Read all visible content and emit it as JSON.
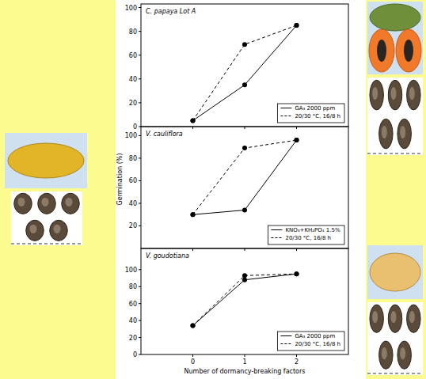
{
  "chart_data": [
    {
      "type": "line",
      "title": "C. papaya Lot A",
      "x": [
        0,
        1,
        2
      ],
      "xlim": [
        -1,
        3
      ],
      "xticks": [
        0,
        1,
        2
      ],
      "ylim": [
        0,
        103
      ],
      "yticks": [
        0,
        20,
        40,
        60,
        80,
        100
      ],
      "tick_labels": "y",
      "legend": "lower right",
      "series": [
        {
          "name": "GA₃ 2000 ppm",
          "color": "#000000",
          "line_style": "solid",
          "marker": "circle",
          "values": [
            5,
            35,
            85
          ]
        },
        {
          "name": "20/30 °C, 16/8 h",
          "color": "#000000",
          "line_style": "dashed",
          "marker": "circle",
          "values": [
            5,
            69,
            85
          ]
        }
      ]
    },
    {
      "type": "line",
      "title": "V. cauliflora",
      "ylabel": "Germination (%)",
      "x": [
        0,
        1,
        2
      ],
      "xlim": [
        -1,
        3
      ],
      "xticks": [
        0,
        1,
        2
      ],
      "ylim": [
        0,
        108
      ],
      "yticks": [
        20,
        40,
        60,
        80,
        100
      ],
      "tick_labels": "y",
      "legend": "lower right",
      "series": [
        {
          "name": "KNO₃+KH₂PO₄ 1.5%",
          "color": "#000000",
          "line_style": "solid",
          "marker": "circle",
          "values": [
            30,
            34,
            96
          ]
        },
        {
          "name": "20/30 °C, 16/8 h",
          "color": "#000000",
          "line_style": "dashed",
          "marker": "circle",
          "values": [
            30,
            89,
            96
          ]
        }
      ]
    },
    {
      "type": "line",
      "title": "V. goudotiana",
      "xlabel": "Number of dormancy-breaking factors",
      "x": [
        0,
        1,
        2
      ],
      "xlim": [
        -1,
        3
      ],
      "xticks": [
        0,
        1,
        2
      ],
      "ylim": [
        0,
        125
      ],
      "yticks": [
        0,
        20,
        40,
        60,
        80,
        100
      ],
      "legend": "lower right",
      "series": [
        {
          "name": "GA₃ 2000 ppm",
          "color": "#000000",
          "line_style": "solid",
          "marker": "circle",
          "values": [
            34,
            88,
            95
          ]
        },
        {
          "name": "20/30 °C, 16/8 h",
          "color": "#000000",
          "line_style": "dashed",
          "marker": "circle",
          "values": [
            34,
            93,
            95
          ]
        }
      ]
    }
  ]
}
